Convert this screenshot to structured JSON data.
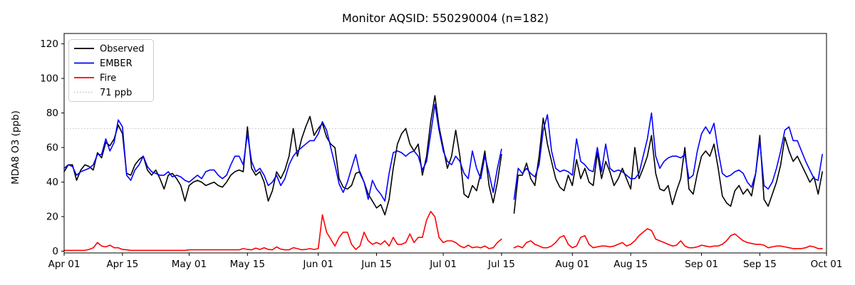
{
  "chart_data": {
    "type": "line",
    "title": "Monitor AQSID: 550290004 (n=182)",
    "xlabel": "",
    "ylabel": "MDA8 O3 (ppb)",
    "x_start_label": "Apr 01",
    "x_end_label": "Oct 01",
    "x_tick_labels": [
      "Apr 01",
      "Apr 15",
      "May 01",
      "May 15",
      "Jun 01",
      "Jun 15",
      "Jul 01",
      "Jul 15",
      "Aug 01",
      "Aug 15",
      "Sep 01",
      "Sep 15",
      "Oct 01"
    ],
    "x_tick_days": [
      0,
      14,
      30,
      44,
      61,
      75,
      91,
      105,
      122,
      136,
      153,
      167,
      183
    ],
    "x_range_days": [
      0,
      183
    ],
    "y_ticks": [
      0,
      20,
      40,
      60,
      80,
      100,
      120
    ],
    "ylim": [
      -1,
      126
    ],
    "grid": false,
    "legend_position": "upper-left",
    "threshold": {
      "label": "71 ppb",
      "value": 71,
      "color": "#c9c9c9",
      "style": "dotted"
    },
    "series": [
      {
        "name": "Observed",
        "color": "#000000",
        "values": [
          46,
          50,
          50,
          41,
          47,
          50,
          49,
          47,
          57,
          54,
          63,
          61,
          65,
          73,
          68,
          45,
          44,
          50,
          53,
          55,
          47,
          44,
          47,
          42,
          36,
          44,
          45,
          42,
          38,
          29,
          38,
          40,
          41,
          40,
          38,
          39,
          40,
          38,
          37,
          40,
          44,
          46,
          47,
          46,
          72,
          48,
          44,
          46,
          40,
          29,
          35,
          46,
          42,
          47,
          55,
          71,
          55,
          65,
          72,
          78,
          67,
          71,
          74,
          66,
          62,
          60,
          42,
          37,
          36,
          38,
          45,
          46,
          40,
          33,
          29,
          25,
          27,
          21,
          30,
          48,
          62,
          68,
          71,
          62,
          58,
          62,
          44,
          55,
          75,
          90,
          72,
          60,
          48,
          55,
          70,
          55,
          33,
          31,
          38,
          35,
          45,
          58,
          38,
          28,
          40,
          56,
          null,
          null,
          22,
          44,
          44,
          51,
          42,
          38,
          55,
          77,
          62,
          52,
          42,
          37,
          35,
          44,
          38,
          53,
          42,
          48,
          40,
          38,
          57,
          42,
          52,
          46,
          38,
          42,
          48,
          42,
          36,
          60,
          42,
          48,
          55,
          67,
          45,
          36,
          35,
          38,
          27,
          35,
          42,
          60,
          36,
          33,
          45,
          55,
          58,
          55,
          62,
          48,
          32,
          28,
          26,
          35,
          38,
          33,
          36,
          32,
          45,
          67,
          30,
          26,
          33,
          40,
          50,
          66,
          58,
          52,
          55,
          50,
          45,
          40,
          43,
          33,
          46
        ]
      },
      {
        "name": "EMBER",
        "color": "#0000ff",
        "values": [
          48,
          50,
          49,
          44,
          46,
          47,
          48,
          50,
          56,
          56,
          65,
          58,
          63,
          76,
          72,
          44,
          41,
          47,
          50,
          55,
          49,
          46,
          45,
          44,
          44,
          46,
          43,
          44,
          43,
          41,
          40,
          42,
          44,
          42,
          46,
          47,
          47,
          44,
          42,
          44,
          50,
          55,
          55,
          50,
          68,
          52,
          46,
          48,
          44,
          38,
          40,
          44,
          38,
          42,
          50,
          55,
          58,
          60,
          62,
          64,
          64,
          68,
          75,
          70,
          60,
          50,
          39,
          34,
          40,
          48,
          56,
          45,
          40,
          30,
          41,
          36,
          33,
          29,
          45,
          57,
          58,
          57,
          55,
          57,
          58,
          55,
          47,
          52,
          68,
          85,
          70,
          58,
          52,
          50,
          55,
          52,
          45,
          42,
          58,
          48,
          42,
          55,
          45,
          34,
          48,
          59,
          null,
          null,
          30,
          48,
          45,
          48,
          45,
          43,
          50,
          70,
          79,
          58,
          48,
          46,
          47,
          46,
          44,
          65,
          52,
          50,
          47,
          46,
          60,
          46,
          62,
          48,
          46,
          47,
          46,
          44,
          42,
          42,
          45,
          55,
          65,
          80,
          55,
          48,
          52,
          54,
          55,
          55,
          54,
          56,
          42,
          44,
          58,
          68,
          72,
          68,
          74,
          58,
          45,
          43,
          44,
          46,
          47,
          45,
          40,
          37,
          45,
          64,
          38,
          36,
          40,
          48,
          58,
          70,
          72,
          64,
          64,
          58,
          52,
          47,
          42,
          41,
          56
        ]
      },
      {
        "name": "Fire",
        "color": "#ff0000",
        "values": [
          0.5,
          0.5,
          0.5,
          0.5,
          0.5,
          0.5,
          1,
          2,
          5,
          3,
          2.5,
          3.5,
          2,
          2,
          1,
          0.8,
          0.5,
          0.5,
          0.5,
          0.5,
          0.5,
          0.5,
          0.5,
          0.5,
          0.5,
          0.5,
          0.5,
          0.5,
          0.5,
          0.5,
          0.8,
          0.8,
          0.8,
          0.8,
          0.8,
          0.8,
          0.8,
          0.8,
          0.8,
          0.8,
          0.8,
          0.8,
          0.8,
          1.5,
          1,
          0.8,
          1.8,
          1,
          2,
          1,
          0.8,
          2.5,
          1.2,
          0.8,
          0.8,
          2,
          1.5,
          0.8,
          1,
          1.5,
          1,
          1.5,
          21,
          11,
          7,
          3,
          8,
          11,
          11,
          4,
          1,
          3,
          11,
          6,
          4,
          5,
          4,
          6,
          3,
          8,
          4,
          4,
          5,
          10,
          5,
          8,
          8,
          18,
          23,
          20,
          8,
          5,
          6,
          6,
          5,
          3,
          2,
          3.5,
          2,
          2.5,
          2,
          3,
          1.5,
          2,
          5,
          7,
          null,
          null,
          2,
          3,
          2,
          5,
          6,
          4,
          3,
          2,
          2,
          3,
          5,
          8,
          9,
          4,
          2,
          3,
          8,
          9,
          4,
          2,
          2.5,
          3,
          3,
          2.5,
          3,
          4,
          5,
          3,
          4,
          6,
          9,
          11,
          13,
          12,
          7,
          6,
          5,
          4,
          3,
          3.5,
          6,
          3,
          2,
          2,
          2.5,
          3.5,
          3,
          2.5,
          3,
          3,
          4,
          6,
          9,
          10,
          8,
          6,
          5,
          4.5,
          4,
          4,
          3.5,
          2,
          2.5,
          3,
          3,
          2.5,
          2,
          1.5,
          1.5,
          1.5,
          2,
          3,
          2.5,
          1.5,
          1.5
        ]
      }
    ],
    "legend_labels": [
      "Observed",
      "EMBER",
      "Fire",
      "71 ppb"
    ]
  }
}
